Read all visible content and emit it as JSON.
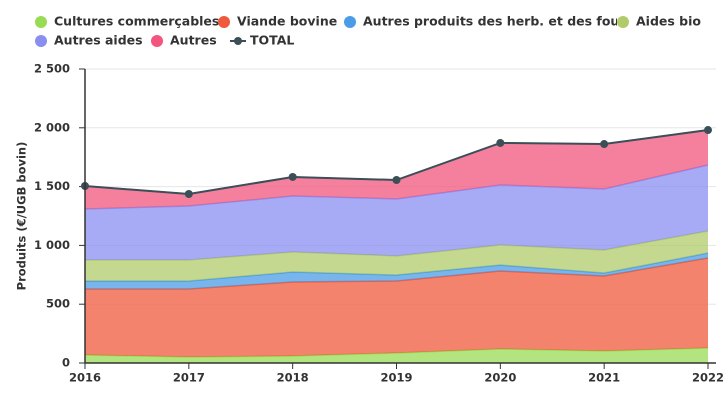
{
  "chart_data": {
    "type": "stacked-area",
    "y_label": "Produits (€/UGB bovin)",
    "x": [
      2016,
      2017,
      2018,
      2019,
      2020,
      2021,
      2022
    ],
    "xticks": [
      2016,
      2017,
      2018,
      2019,
      2020,
      2021,
      2022
    ],
    "ylim": [
      0,
      2500
    ],
    "yticks": [
      0,
      500,
      {
        "value": 1000,
        "label": "1 000"
      },
      {
        "value": 1500,
        "label": "1 500"
      },
      {
        "value": 2000,
        "label": "2 000"
      },
      {
        "value": 2500,
        "label": "2 500"
      }
    ],
    "grid": true,
    "series": [
      {
        "name": "Cultures commerçables",
        "color": "#98dc54",
        "values": [
          68,
          51,
          60,
          85,
          119,
          102,
          128
        ]
      },
      {
        "name": "Viande bovine",
        "color": "#f05a3c",
        "values": [
          561,
          578,
          629,
          612,
          663,
          638,
          765
        ]
      },
      {
        "name": "Autres produits des herb. et des fourr",
        "color": "#4a9ce6",
        "values": [
          68,
          68,
          85,
          51,
          51,
          25,
          42
        ]
      },
      {
        "name": "Aides bio",
        "color": "#b2cb6a",
        "values": [
          179,
          179,
          170,
          162,
          170,
          196,
          187
        ]
      },
      {
        "name": "Autres aides",
        "color": "#8a8ef0",
        "values": [
          434,
          459,
          476,
          485,
          511,
          519,
          562
        ]
      },
      {
        "name": "Autres",
        "color": "#f2557e",
        "values": [
          195,
          102,
          162,
          161,
          357,
          382,
          297
        ]
      },
      {
        "name": "TOTAL",
        "color": "#3b4f58",
        "line": true,
        "values": [
          1505,
          1437,
          1582,
          1556,
          1871,
          1862,
          1981
        ]
      }
    ]
  }
}
